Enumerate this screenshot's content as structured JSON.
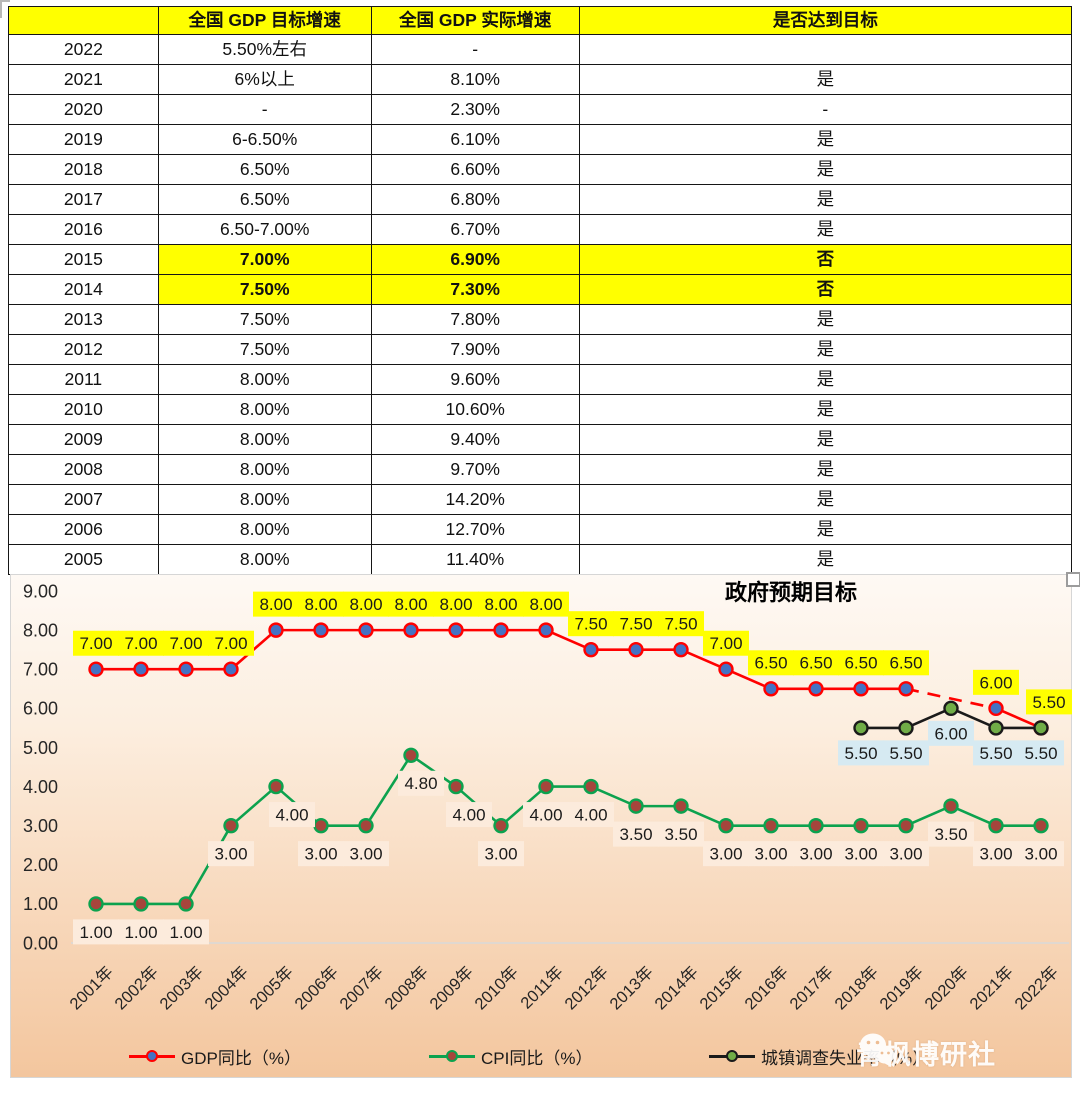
{
  "table": {
    "columns": [
      "",
      "全国 GDP 目标增速",
      "全国 GDP 实际增速",
      "是否达到目标"
    ],
    "header_bg": "#FFFF00",
    "highlight_bg": "#FFFF00",
    "rows": [
      {
        "year": "2022",
        "target": "5.50%左右",
        "actual": "-",
        "met": "",
        "highlight": false
      },
      {
        "year": "2021",
        "target": "6%以上",
        "actual": "8.10%",
        "met": "是",
        "highlight": false
      },
      {
        "year": "2020",
        "target": "-",
        "actual": "2.30%",
        "met": "-",
        "highlight": false
      },
      {
        "year": "2019",
        "target": "6-6.50%",
        "actual": "6.10%",
        "met": "是",
        "highlight": false
      },
      {
        "year": "2018",
        "target": "6.50%",
        "actual": "6.60%",
        "met": "是",
        "highlight": false
      },
      {
        "year": "2017",
        "target": "6.50%",
        "actual": "6.80%",
        "met": "是",
        "highlight": false
      },
      {
        "year": "2016",
        "target": "6.50-7.00%",
        "actual": "6.70%",
        "met": "是",
        "highlight": false
      },
      {
        "year": "2015",
        "target": "7.00%",
        "actual": "6.90%",
        "met": "否",
        "highlight": true
      },
      {
        "year": "2014",
        "target": "7.50%",
        "actual": "7.30%",
        "met": "否",
        "highlight": true
      },
      {
        "year": "2013",
        "target": "7.50%",
        "actual": "7.80%",
        "met": "是",
        "highlight": false
      },
      {
        "year": "2012",
        "target": "7.50%",
        "actual": "7.90%",
        "met": "是",
        "highlight": false
      },
      {
        "year": "2011",
        "target": "8.00%",
        "actual": "9.60%",
        "met": "是",
        "highlight": false
      },
      {
        "year": "2010",
        "target": "8.00%",
        "actual": "10.60%",
        "met": "是",
        "highlight": false
      },
      {
        "year": "2009",
        "target": "8.00%",
        "actual": "9.40%",
        "met": "是",
        "highlight": false
      },
      {
        "year": "2008",
        "target": "8.00%",
        "actual": "9.70%",
        "met": "是",
        "highlight": false
      },
      {
        "year": "2007",
        "target": "8.00%",
        "actual": "14.20%",
        "met": "是",
        "highlight": false
      },
      {
        "year": "2006",
        "target": "8.00%",
        "actual": "12.70%",
        "met": "是",
        "highlight": false
      },
      {
        "year": "2005",
        "target": "8.00%",
        "actual": "11.40%",
        "met": "是",
        "highlight": false
      }
    ]
  },
  "chart_data": {
    "type": "line",
    "title": "政府预期目标",
    "x": [
      "2001年",
      "2002年",
      "2003年",
      "2004年",
      "2005年",
      "2006年",
      "2007年",
      "2008年",
      "2009年",
      "2010年",
      "2011年",
      "2012年",
      "2013年",
      "2014年",
      "2015年",
      "2016年",
      "2017年",
      "2018年",
      "2019年",
      "2020年",
      "2021年",
      "2022年"
    ],
    "ylim": [
      0,
      9
    ],
    "yticks": [
      "0.00",
      "1.00",
      "2.00",
      "3.00",
      "4.00",
      "5.00",
      "6.00",
      "7.00",
      "8.00",
      "9.00"
    ],
    "grid": false,
    "legend_position": "bottom",
    "series": [
      {
        "name": "GDP同比（%）",
        "line_color": "#FF0000",
        "marker_fill": "#4472C4",
        "marker_stroke": "#FF0000",
        "label_bg": "#FFFF00",
        "label_side": "above",
        "dashed_over_gap": true,
        "values": [
          7,
          7,
          7,
          7,
          8,
          8,
          8,
          8,
          8,
          8,
          8,
          7.5,
          7.5,
          7.5,
          7,
          6.5,
          6.5,
          6.5,
          6.5,
          null,
          6,
          5.5
        ]
      },
      {
        "name": "CPI同比（%）",
        "line_color": "#0CA24E",
        "marker_fill": "#A6453C",
        "marker_stroke": "#0CA24E",
        "label_bg": "#FCEBDC",
        "label_side": "below",
        "dashed_over_gap": false,
        "values": [
          1,
          1,
          1,
          3,
          4,
          3,
          3,
          4.8,
          4,
          3,
          4,
          4,
          3.5,
          3.5,
          3,
          3,
          3,
          3,
          3,
          3.5,
          3,
          3
        ]
      },
      {
        "name": "城镇调查失业率（%）",
        "line_color": "#1A1A1A",
        "marker_fill": "#70AD47",
        "marker_stroke": "#1A1A1A",
        "label_bg": "#D6EAF2",
        "label_side": "below",
        "dashed_over_gap": false,
        "values": [
          null,
          null,
          null,
          null,
          null,
          null,
          null,
          null,
          null,
          null,
          null,
          null,
          null,
          null,
          null,
          null,
          null,
          5.5,
          5.5,
          6,
          5.5,
          5.5
        ]
      }
    ]
  },
  "watermark": {
    "text": "青枫博研社"
  }
}
